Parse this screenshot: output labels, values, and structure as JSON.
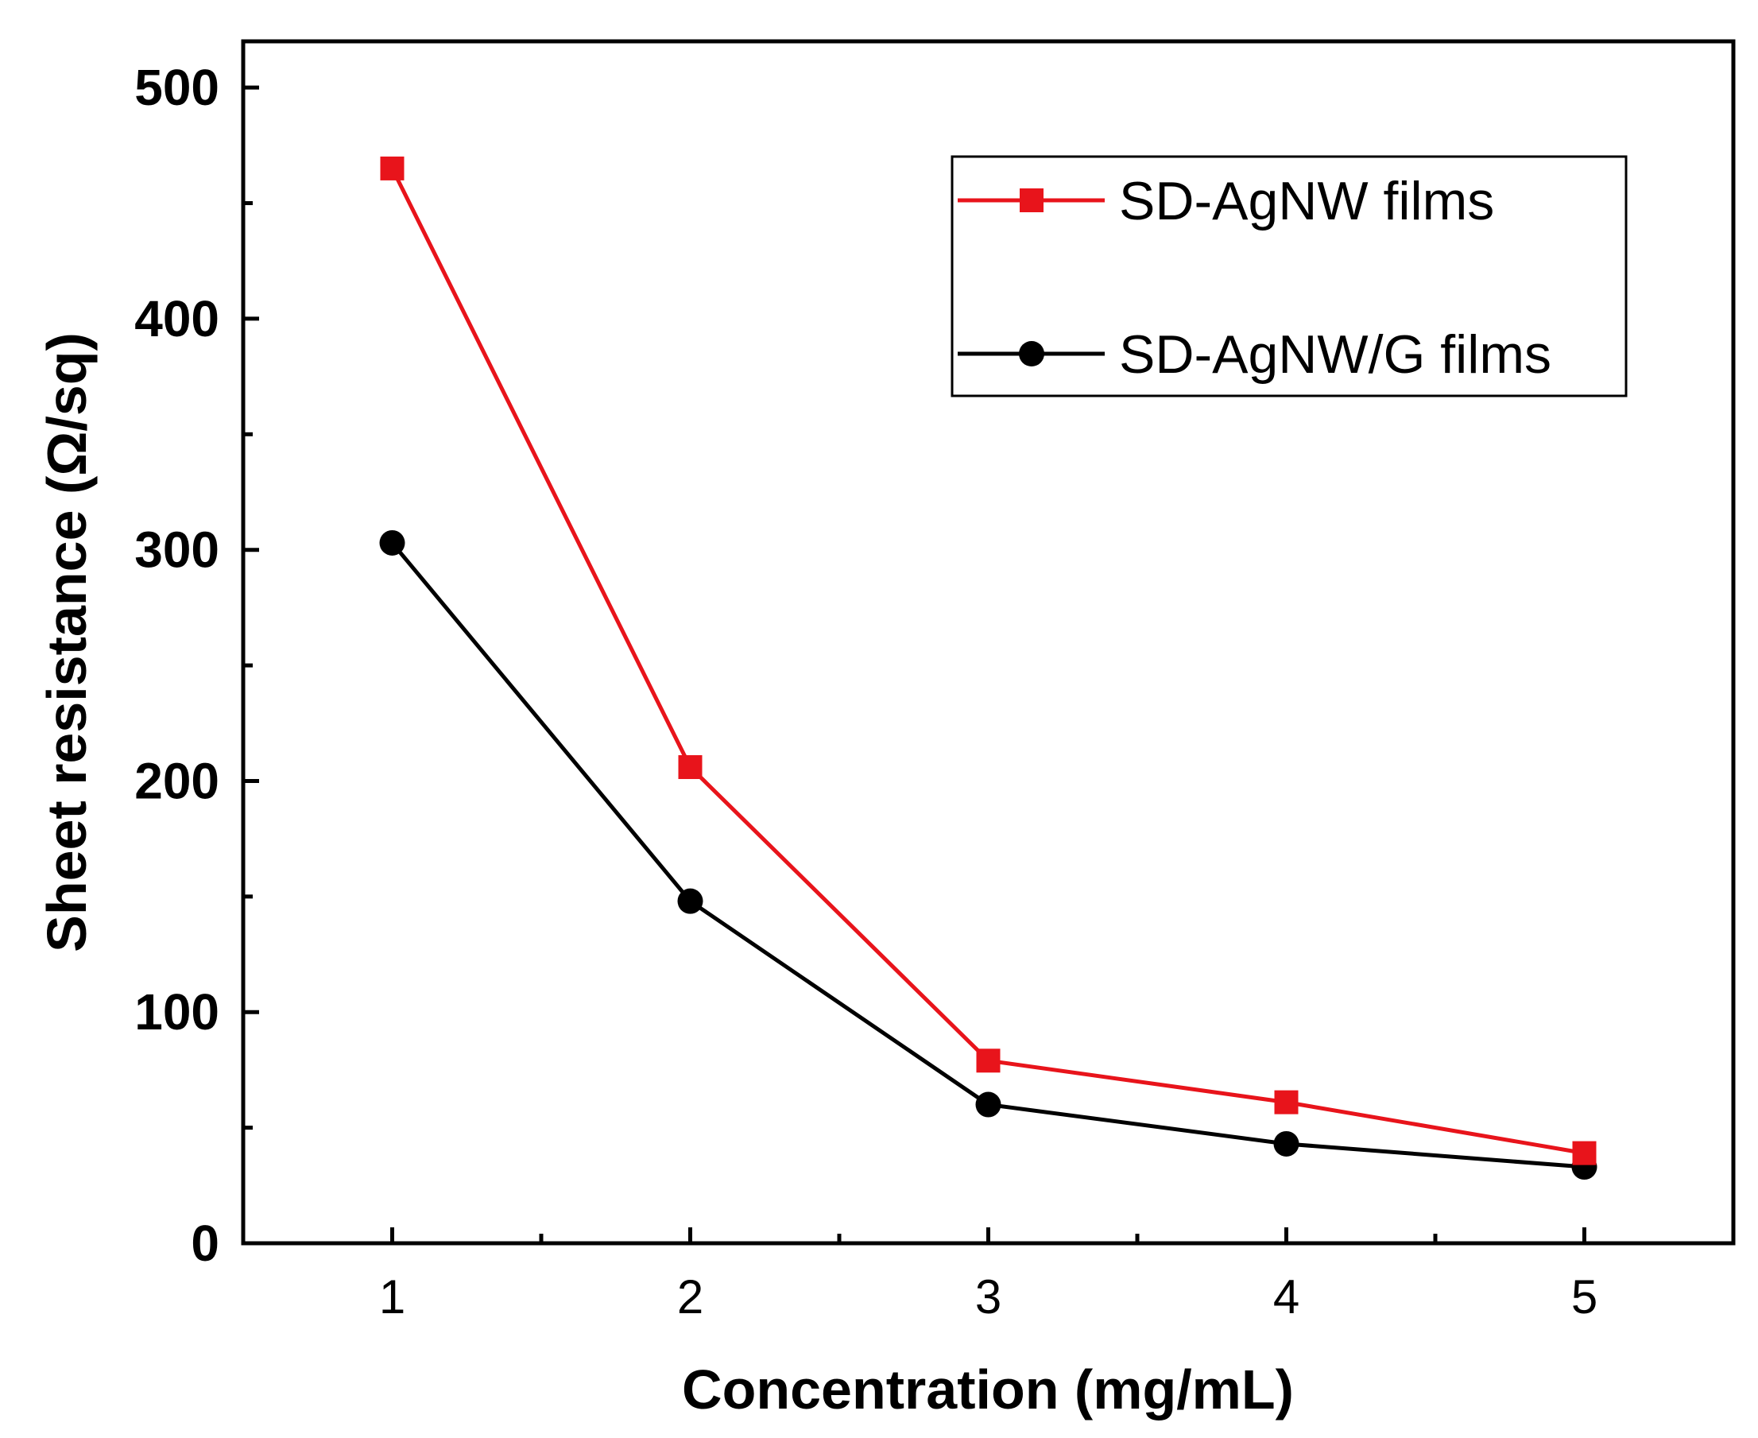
{
  "chart_data": {
    "type": "line",
    "title": "",
    "xlabel": "Concentration (mg/mL)",
    "ylabel": "Sheet resistance (Ω/sq)",
    "x": [
      1,
      2,
      3,
      4,
      5
    ],
    "xlim": [
      0.5,
      5.5
    ],
    "ylim": [
      0,
      520
    ],
    "x_ticks": [
      "1",
      "2",
      "3",
      "4",
      "5"
    ],
    "y_ticks": [
      "0",
      "100",
      "200",
      "300",
      "400",
      "500"
    ],
    "legend_position": "top-right",
    "grid": false,
    "series": [
      {
        "name": "SD-AgNW films",
        "color": "#e8141b",
        "marker": "square",
        "values": [
          465,
          206,
          79,
          61,
          39
        ]
      },
      {
        "name": "SD-AgNW/G films",
        "color": "#000000",
        "marker": "circle",
        "values": [
          303,
          148,
          60,
          43,
          33
        ]
      }
    ]
  }
}
